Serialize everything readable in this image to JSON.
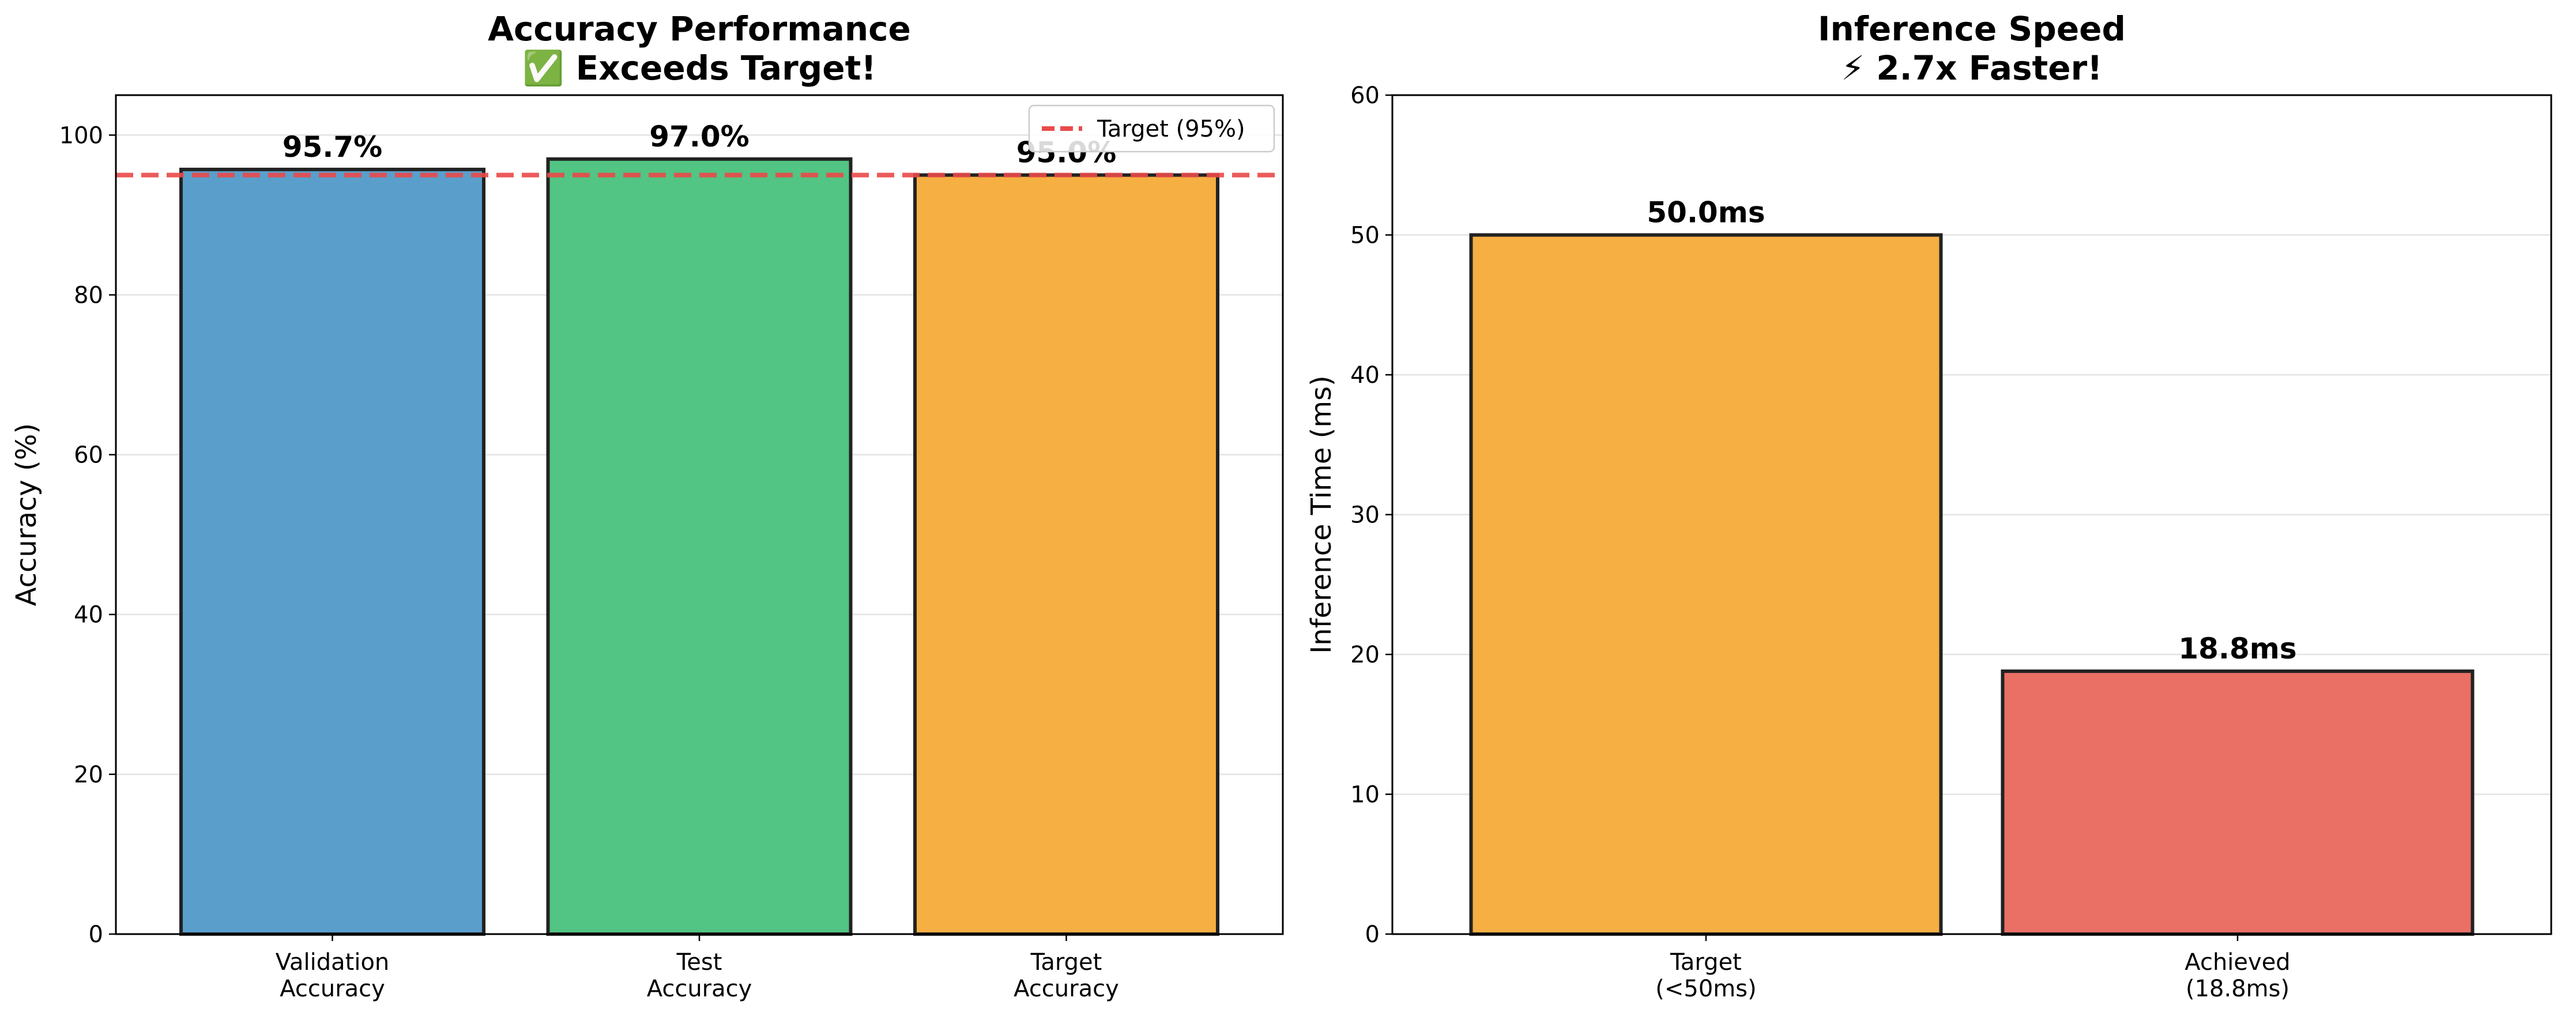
{
  "chart_data": [
    {
      "type": "bar",
      "title_line1": "Accuracy Performance",
      "title_line2": "✅ Exceeds Target!",
      "ylabel": "Accuracy (%)",
      "ylim": [
        0,
        105
      ],
      "yticks": [
        0,
        20,
        40,
        60,
        80,
        100
      ],
      "grid": "y",
      "categories": [
        [
          "Validation",
          "Accuracy"
        ],
        [
          "Test",
          "Accuracy"
        ],
        [
          "Target",
          "Accuracy"
        ]
      ],
      "values": [
        95.7,
        97.0,
        95.0
      ],
      "value_labels": [
        "95.7%",
        "97.0%",
        "95.0%"
      ],
      "colors": [
        "#5a9ecc",
        "#52c483",
        "#f5af42"
      ],
      "reference_line": {
        "value": 95,
        "label": "Target (95%)",
        "color": "#ea4a4a",
        "style": "dashed"
      },
      "legend_position": "top-right"
    },
    {
      "type": "bar",
      "title_line1": "Inference Speed",
      "title_line2": "⚡ 2.7x Faster!",
      "ylabel": "Inference Time (ms)",
      "ylim": [
        0,
        60
      ],
      "yticks": [
        0,
        10,
        20,
        30,
        40,
        50,
        60
      ],
      "grid": "y",
      "categories": [
        [
          "Target",
          "(<50ms)"
        ],
        [
          "Achieved",
          "(18.8ms)"
        ]
      ],
      "values": [
        50.0,
        18.8
      ],
      "value_labels": [
        "50.0ms",
        "18.8ms"
      ],
      "colors": [
        "#f5af42",
        "#ea6f64"
      ]
    }
  ]
}
